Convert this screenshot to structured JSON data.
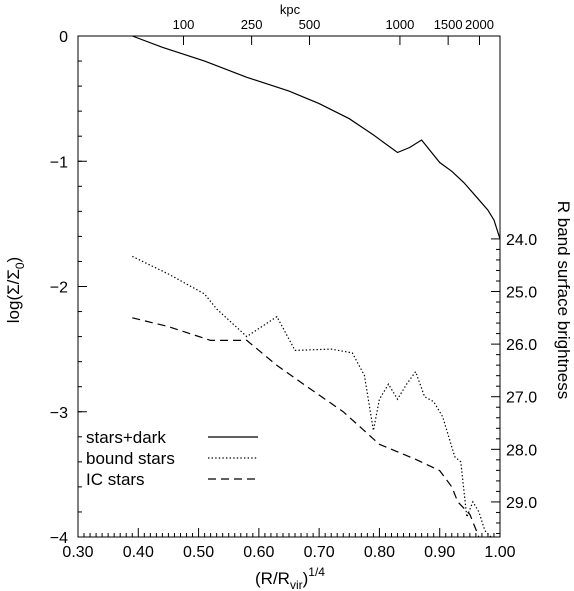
{
  "chart_data": {
    "type": "line",
    "x_axis": {
      "label_main": "(R/R",
      "label_sub": "vir",
      "label_sup": "1/4",
      "label_close": ")",
      "range": [
        0.3,
        1.0
      ],
      "ticks": [
        0.3,
        0.4,
        0.5,
        0.6,
        0.7,
        0.8,
        0.9,
        1.0
      ],
      "tick_labels": [
        "0.30",
        "0.40",
        "0.50",
        "0.60",
        "0.70",
        "0.80",
        "0.90",
        "1.00"
      ]
    },
    "y_axis": {
      "label_prefix": "log(Σ/Σ",
      "label_sub": "0",
      "label_suffix": ")",
      "range": [
        -4,
        0
      ],
      "ticks": [
        0,
        -1,
        -2,
        -3,
        -4
      ],
      "tick_labels": [
        "0",
        "−1",
        "−2",
        "−3",
        "−4"
      ]
    },
    "top_axis": {
      "label": "kpc",
      "tick_labels": [
        "100",
        "250",
        "500",
        "1000",
        "1500",
        "2000"
      ],
      "tick_positions": [
        0.475,
        0.588,
        0.684,
        0.834,
        0.914,
        0.966
      ]
    },
    "right_axis": {
      "label": "R band surface brightness",
      "tick_labels": [
        "24.0",
        "25.0",
        "26.0",
        "27.0",
        "28.0",
        "29.0"
      ],
      "tick_positions": [
        -1.62,
        -2.04,
        -2.46,
        -2.88,
        -3.3,
        -3.72
      ]
    },
    "series": [
      {
        "name": "stars+dark",
        "style": "solid",
        "x": [
          0.39,
          0.44,
          0.51,
          0.58,
          0.65,
          0.7,
          0.75,
          0.79,
          0.83,
          0.85,
          0.87,
          0.9,
          0.92,
          0.94,
          0.96,
          0.98,
          0.99,
          1.0
        ],
        "y": [
          0.0,
          -0.09,
          -0.2,
          -0.33,
          -0.44,
          -0.54,
          -0.66,
          -0.79,
          -0.93,
          -0.89,
          -0.83,
          -1.01,
          -1.08,
          -1.17,
          -1.28,
          -1.39,
          -1.47,
          -1.62
        ]
      },
      {
        "name": "bound stars",
        "style": "dotted",
        "x": [
          0.39,
          0.45,
          0.51,
          0.53,
          0.58,
          0.63,
          0.66,
          0.72,
          0.755,
          0.775,
          0.79,
          0.8,
          0.815,
          0.83,
          0.845,
          0.86,
          0.875,
          0.89,
          0.905,
          0.925,
          0.935,
          0.945,
          0.955,
          0.965,
          0.975,
          0.985
        ],
        "y": [
          -1.76,
          -1.9,
          -2.06,
          -2.18,
          -2.4,
          -2.24,
          -2.51,
          -2.5,
          -2.53,
          -2.71,
          -3.15,
          -2.9,
          -2.78,
          -2.9,
          -2.78,
          -2.68,
          -2.88,
          -2.92,
          -3.04,
          -3.36,
          -3.4,
          -3.84,
          -3.72,
          -3.8,
          -3.95,
          -4.05
        ]
      },
      {
        "name": "IC stars",
        "style": "dashed",
        "x": [
          0.39,
          0.45,
          0.52,
          0.58,
          0.63,
          0.68,
          0.74,
          0.8,
          0.86,
          0.9,
          0.92,
          0.93,
          0.95,
          0.965
        ],
        "y": [
          -2.25,
          -2.32,
          -2.43,
          -2.43,
          -2.63,
          -2.8,
          -3.0,
          -3.26,
          -3.38,
          -3.47,
          -3.6,
          -3.72,
          -3.82,
          -4.05
        ]
      }
    ],
    "legend": {
      "position": "bottom-left"
    }
  }
}
